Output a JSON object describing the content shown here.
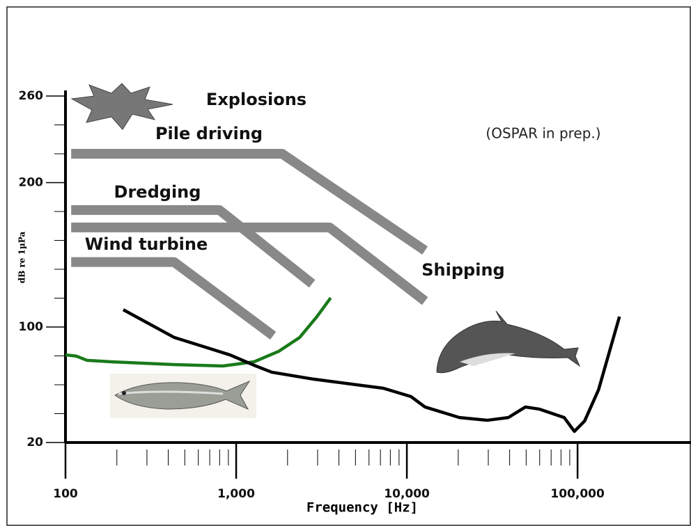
{
  "chart_data": {
    "type": "line",
    "annotations": [
      "Explosions",
      "(OSPAR in prep.)"
    ],
    "xlabel": "Frequency [Hz]",
    "ylabel": "dB re 1µPa",
    "xscale": "log",
    "xlim": [
      100,
      462000
    ],
    "ylim": [
      20,
      260
    ],
    "xticks": [
      100,
      {
        "value": 1000,
        "label": "1,000"
      },
      {
        "value": 10000,
        "label": "10,000"
      },
      {
        "value": 100000,
        "label": "100,000"
      }
    ],
    "xticks_minor": [
      200,
      300,
      400,
      500,
      600,
      700,
      800,
      900,
      2000,
      3000,
      4000,
      5000,
      6000,
      7000,
      8000,
      9000,
      20000,
      30000,
      40000,
      50000,
      60000,
      70000,
      80000,
      90000
    ],
    "yticks": [
      20,
      100,
      200,
      260
    ],
    "yticks_minor": [
      40,
      60,
      80,
      120,
      140,
      160,
      180,
      220,
      240
    ],
    "series": [
      {
        "name": "Pile driving",
        "color": "#888888",
        "x": [
          108,
          1858,
          12770
        ],
        "values": [
          220,
          220,
          153
        ]
      },
      {
        "name": "Dredging",
        "color": "#888888",
        "x": [
          108,
          798,
          2786
        ],
        "values": [
          181,
          181,
          130
        ]
      },
      {
        "name": "Shipping",
        "color": "#888888",
        "x": [
          108,
          3524,
          12770
        ],
        "values": [
          169,
          169,
          118
        ]
      },
      {
        "name": "Wind turbine",
        "color": "#888888",
        "x": [
          108,
          433,
          1646
        ],
        "values": [
          145,
          145,
          94
        ]
      },
      {
        "color": "#1a7a1a",
        "x": [
          100,
          116,
          134,
          186,
          433,
          837,
          1273,
          1771,
          2356,
          2973,
          3578
        ],
        "values": [
          80.7,
          79.8,
          76.9,
          75.9,
          74,
          73,
          75.9,
          83.1,
          92.8,
          107.2,
          120.2
        ]
      },
      {
        "color": "#000000",
        "x": [
          218,
          433,
          919,
          1273,
          1616,
          2835,
          7279,
          10580,
          12770,
          20330,
          29520,
          39300,
          49500,
          59900,
          83500,
          95800,
          110000,
          132800,
          176000
        ],
        "values": [
          112,
          92.8,
          80.7,
          73.5,
          68.7,
          63.9,
          57.6,
          51.8,
          44.6,
          37.3,
          35.4,
          37.3,
          44.6,
          43.1,
          37.3,
          27.7,
          34.9,
          56.6,
          107.2
        ]
      }
    ]
  }
}
